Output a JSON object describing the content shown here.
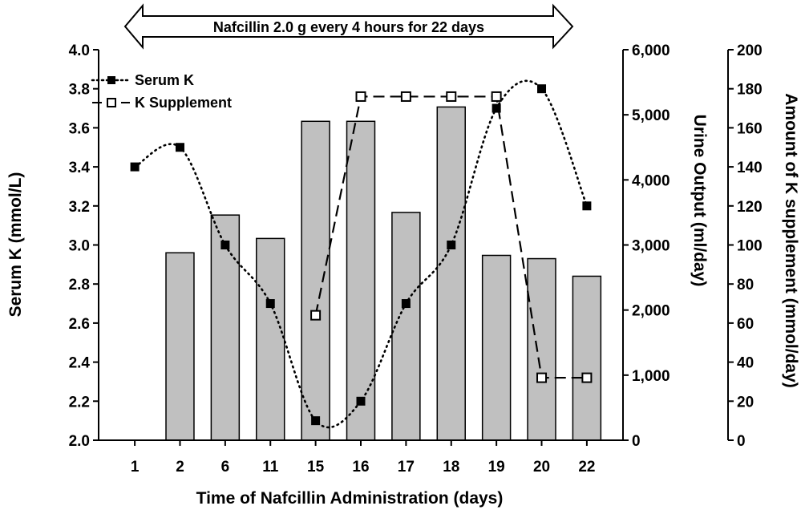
{
  "chart_data": {
    "type": "bar+line",
    "banner": "Nafcillin 2.0 g every 4 hours for 22 days",
    "xlabel": "Time of Nafcillin Administration (days)",
    "categories": [
      "1",
      "2",
      "6",
      "11",
      "15",
      "16",
      "17",
      "18",
      "19",
      "20",
      "22"
    ],
    "axes": {
      "left": {
        "label": "Serum K (mmol/L)",
        "min": 2.0,
        "max": 4.0,
        "ticks": [
          "2.0",
          "2.2",
          "2.4",
          "2.6",
          "2.8",
          "3.0",
          "3.2",
          "3.4",
          "3.6",
          "3.8",
          "4.0"
        ]
      },
      "right1": {
        "label": "Urine Output (ml/day)",
        "min": 0,
        "max": 6000,
        "ticks": [
          "0",
          "1,000",
          "2,000",
          "3,000",
          "4,000",
          "5,000",
          "6,000"
        ]
      },
      "right2": {
        "label": "Amount of K supplement (mmol/day)",
        "min": 0,
        "max": 200,
        "ticks": [
          "0",
          "20",
          "40",
          "60",
          "80",
          "100",
          "120",
          "140",
          "160",
          "180",
          "200"
        ]
      }
    },
    "series": [
      {
        "kind": "bar",
        "axis": "right1",
        "values": [
          null,
          2880,
          3460,
          3100,
          4900,
          4900,
          3500,
          5120,
          2840,
          2790,
          2520
        ],
        "color": "#c0c0c0"
      },
      {
        "kind": "line",
        "name": "Serum K",
        "axis": "left",
        "values": [
          3.4,
          3.5,
          3.0,
          2.7,
          2.1,
          2.2,
          2.7,
          3.0,
          3.7,
          3.8,
          3.2
        ],
        "marker": "filled-square",
        "style": "dotted"
      },
      {
        "kind": "line",
        "name": "K Supplement",
        "axis": "right2",
        "values": [
          null,
          null,
          null,
          null,
          64,
          176,
          176,
          176,
          176,
          32,
          32
        ],
        "marker": "open-square",
        "style": "dashed"
      }
    ],
    "legend": "top-left",
    "grid": false
  }
}
